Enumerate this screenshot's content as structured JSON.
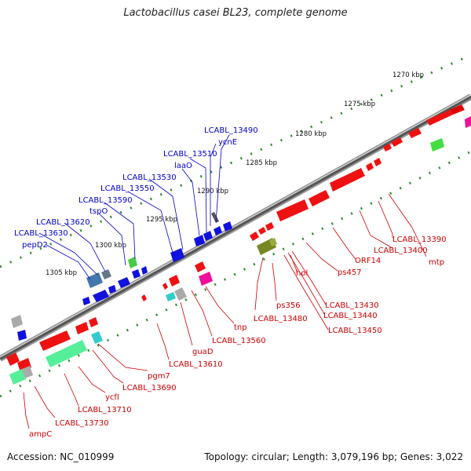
{
  "title": "Lactobacillus casei BL23, complete genome",
  "footer": {
    "accession": "Accession: NC_010999",
    "summary": "Topology: circular; Length: 3,079,196 bp; Genes: 3,022"
  },
  "colors": {
    "backbone": "#6f6f6f",
    "tick": "#2e8b2e",
    "forward_label": "#0000cc",
    "reverse_label": "#cc0000"
  },
  "scale": {
    "labels": [
      "1270 kbp",
      "1275 kbp",
      "1280 kbp",
      "1285 kbp",
      "1290 kbp",
      "1295 kbp",
      "1300 kbp",
      "1305 kbp"
    ]
  },
  "forward_labels": [
    "LCABL_13490",
    "ycnE",
    "LCABL_13510",
    "laaO",
    "LCABL_13530",
    "LCABL_13550",
    "LCABL_13590",
    "tspO",
    "LCABL_13620",
    "LCABL_13630",
    "pepD2"
  ],
  "reverse_labels": [
    "LCABL_13390",
    "mtp",
    "LCABL_13400",
    "ORF14",
    "ps457",
    "hol",
    "ps356",
    "LCABL_13430",
    "LCABL_13440",
    "LCABL_13450",
    "LCABL_13480",
    "tnp",
    "LCABL_13560",
    "guaD",
    "LCABL_13610",
    "pgm7",
    "LCABL_13690",
    "ycfI",
    "LCABL_13710",
    "LCABL_13730",
    "ampC"
  ],
  "legend_colors": {
    "red": "#ee1111",
    "blue": "#1111dd",
    "green_light": "#55ee99",
    "teal": "#33cccc",
    "grey": "#aaaaaa",
    "pink": "#ee3399",
    "olive": "#778822",
    "steel": "#4477aa"
  }
}
